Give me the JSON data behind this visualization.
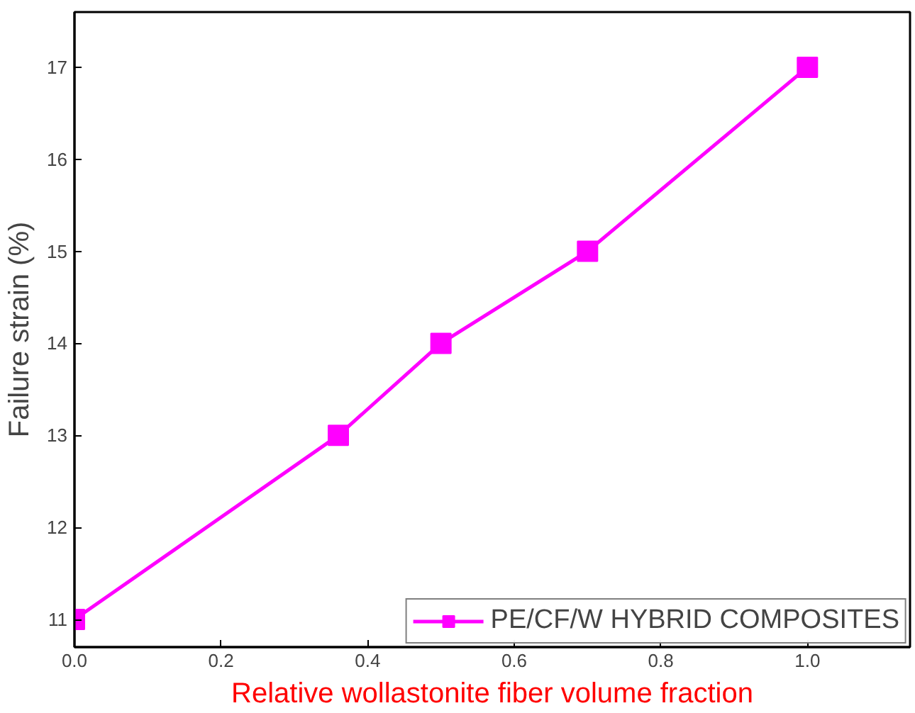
{
  "chart_data": {
    "type": "line",
    "xlabel": "Relative wollastonite fiber volume fraction",
    "ylabel": "Failure strain (%)",
    "x": [
      0.0,
      0.36,
      0.5,
      0.7,
      1.0
    ],
    "series": [
      {
        "name": "PE/CF/W HYBRID COMPOSITES",
        "color": "#ff00ff",
        "values": [
          11,
          13,
          14,
          15,
          17
        ]
      }
    ],
    "xlim": [
      0,
      1.14
    ],
    "ylim": [
      10.7,
      17.6
    ],
    "xticks": [
      {
        "value": 0,
        "label": "0.0"
      },
      0.2,
      0.4,
      0.6,
      0.8,
      {
        "value": 1,
        "label": "1.0"
      }
    ],
    "yticks": [
      11,
      12,
      13,
      14,
      15,
      16,
      17
    ],
    "legend": "bottom right",
    "marker": "square",
    "line_style": "solid",
    "grid": false
  }
}
